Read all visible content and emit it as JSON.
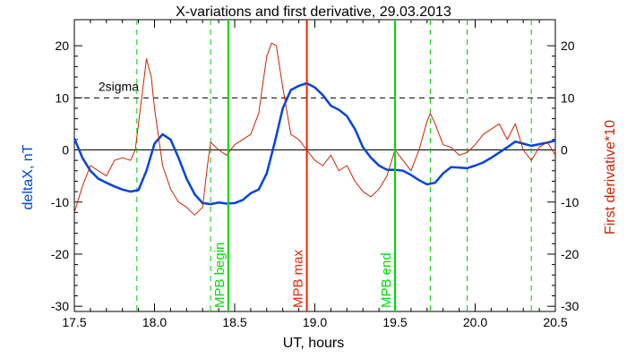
{
  "chart_data": {
    "type": "line",
    "title": "X-variations and first derivative, 29.03.2013",
    "xlabel": "UT, hours",
    "ylabel_left": "deltaX, nT",
    "ylabel_right": "First derivative*10",
    "xlim": [
      17.5,
      20.5
    ],
    "ylim_left": [
      -31,
      25
    ],
    "ylim_right": [
      -31,
      25
    ],
    "x_ticks": [
      17.5,
      18.0,
      18.5,
      19.0,
      19.5,
      20.0,
      20.5
    ],
    "x_tick_labels": [
      "17.5",
      "18.0",
      "18.5",
      "19.0",
      "19.5",
      "20.0",
      "20.5"
    ],
    "y_ticks": [
      -30,
      -20,
      -10,
      0,
      10,
      20
    ],
    "y_tick_labels": [
      "-30",
      "-20",
      "-10",
      "0",
      "10",
      "20"
    ],
    "threshold": {
      "value": 10,
      "label": "2sigma",
      "style": "dashed",
      "color": "#000000"
    },
    "zero_line": {
      "value": 0,
      "color": "#000000"
    },
    "event_lines": [
      {
        "x": 18.46,
        "label": "MPB begin",
        "color": "#00dd00"
      },
      {
        "x": 18.95,
        "label": "MPB max",
        "color": "#ee2200"
      },
      {
        "x": 19.5,
        "label": "MPB end",
        "color": "#00dd00"
      }
    ],
    "dashed_lines": [
      {
        "x": 17.89,
        "color": "#00cc00"
      },
      {
        "x": 18.35,
        "color": "#00cc00"
      },
      {
        "x": 19.72,
        "color": "#00cc00"
      },
      {
        "x": 19.95,
        "color": "#00cc00"
      },
      {
        "x": 20.35,
        "color": "#00cc00"
      }
    ],
    "series": [
      {
        "color": "#0044dd",
        "axis": "left",
        "x": [
          17.5,
          17.55,
          17.6,
          17.65,
          17.7,
          17.75,
          17.8,
          17.85,
          17.9,
          17.95,
          18.0,
          18.05,
          18.1,
          18.15,
          18.2,
          18.25,
          18.3,
          18.35,
          18.4,
          18.45,
          18.5,
          18.55,
          18.6,
          18.65,
          18.7,
          18.75,
          18.8,
          18.85,
          18.9,
          18.95,
          19.0,
          19.05,
          19.1,
          19.15,
          19.2,
          19.25,
          19.3,
          19.35,
          19.4,
          19.45,
          19.5,
          19.55,
          19.6,
          19.65,
          19.7,
          19.75,
          19.8,
          19.85,
          19.9,
          19.95,
          20.0,
          20.05,
          20.1,
          20.15,
          20.2,
          20.25,
          20.3,
          20.35,
          20.4,
          20.45,
          20.5
        ],
        "values": [
          2.2,
          -1.5,
          -4.0,
          -5.5,
          -6.3,
          -7.0,
          -7.6,
          -8.0,
          -7.7,
          -4.0,
          1.2,
          3.0,
          2.0,
          -1.5,
          -5.5,
          -8.5,
          -10.2,
          -10.4,
          -10.1,
          -10.3,
          -10.2,
          -9.6,
          -8.3,
          -7.6,
          -4.5,
          1.5,
          8.0,
          11.5,
          12.3,
          12.8,
          12.0,
          10.5,
          8.5,
          7.7,
          6.5,
          4.0,
          0.5,
          -1.5,
          -3.0,
          -3.8,
          -3.8,
          -4.0,
          -4.8,
          -5.8,
          -6.6,
          -6.3,
          -4.5,
          -3.3,
          -3.4,
          -3.5,
          -3.0,
          -2.4,
          -1.5,
          -0.5,
          0.5,
          1.6,
          1.2,
          0.8,
          1.1,
          1.4,
          1.8
        ]
      },
      {
        "color": "#cc2200",
        "axis": "right",
        "x": [
          17.5,
          17.55,
          17.6,
          17.65,
          17.7,
          17.75,
          17.8,
          17.85,
          17.88,
          17.92,
          17.95,
          17.98,
          18.0,
          18.05,
          18.1,
          18.15,
          18.2,
          18.25,
          18.3,
          18.33,
          18.35,
          18.4,
          18.45,
          18.5,
          18.55,
          18.6,
          18.65,
          18.7,
          18.73,
          18.76,
          18.8,
          18.85,
          18.9,
          18.95,
          19.0,
          19.05,
          19.1,
          19.15,
          19.2,
          19.25,
          19.3,
          19.35,
          19.4,
          19.45,
          19.5,
          19.55,
          19.6,
          19.65,
          19.7,
          19.72,
          19.75,
          19.8,
          19.85,
          19.9,
          19.95,
          20.0,
          20.05,
          20.1,
          20.15,
          20.2,
          20.25,
          20.3,
          20.35,
          20.4,
          20.45,
          20.5
        ],
        "values": [
          -12.0,
          -7.0,
          -3.0,
          -4.0,
          -5.0,
          -2.0,
          -1.5,
          -2.0,
          0.0,
          10.0,
          17.5,
          14.0,
          8.0,
          -3.0,
          -7.5,
          -10.0,
          -11.0,
          -12.5,
          -11.0,
          -3.0,
          1.5,
          0.0,
          -1.0,
          1.0,
          2.0,
          3.0,
          7.0,
          18.0,
          20.5,
          20.0,
          12.0,
          3.0,
          2.0,
          0.0,
          -2.0,
          -3.0,
          -1.0,
          -4.0,
          -3.0,
          -6.0,
          -8.0,
          -9.0,
          -7.5,
          -5.0,
          0.0,
          -2.0,
          -4.0,
          0.0,
          5.5,
          7.0,
          5.0,
          1.0,
          0.5,
          -1.0,
          -0.5,
          1.0,
          3.0,
          4.0,
          5.0,
          2.0,
          5.0,
          0.0,
          -2.0,
          0.5,
          1.5,
          -1.0
        ]
      }
    ]
  }
}
